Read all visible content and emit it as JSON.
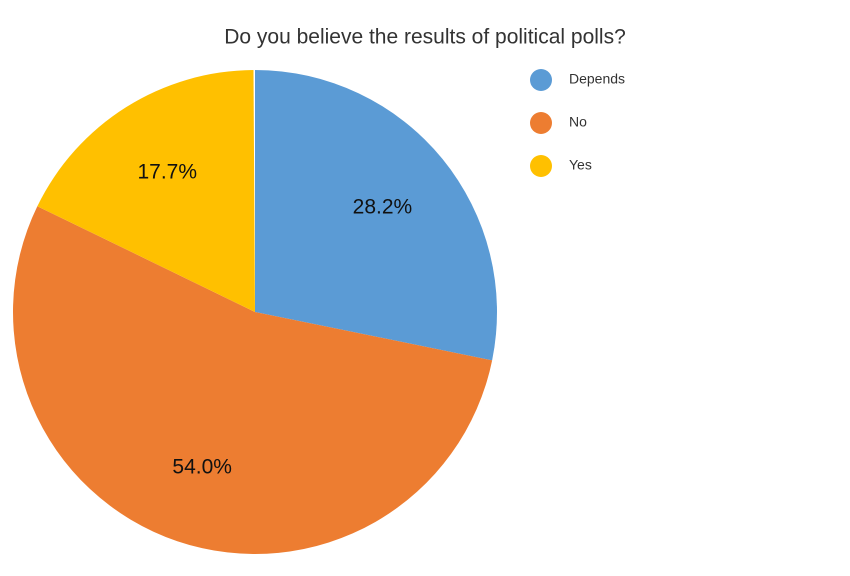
{
  "chart_data": {
    "type": "pie",
    "title": "Do you believe the results of political polls?",
    "categories": [
      "Depends",
      "No",
      "Yes"
    ],
    "values": [
      28.2,
      54.0,
      17.7
    ],
    "value_labels": [
      "28.2%",
      "54.0%",
      "17.7%"
    ],
    "colors": [
      "#5b9bd5",
      "#ed7d31",
      "#ffc000"
    ]
  }
}
